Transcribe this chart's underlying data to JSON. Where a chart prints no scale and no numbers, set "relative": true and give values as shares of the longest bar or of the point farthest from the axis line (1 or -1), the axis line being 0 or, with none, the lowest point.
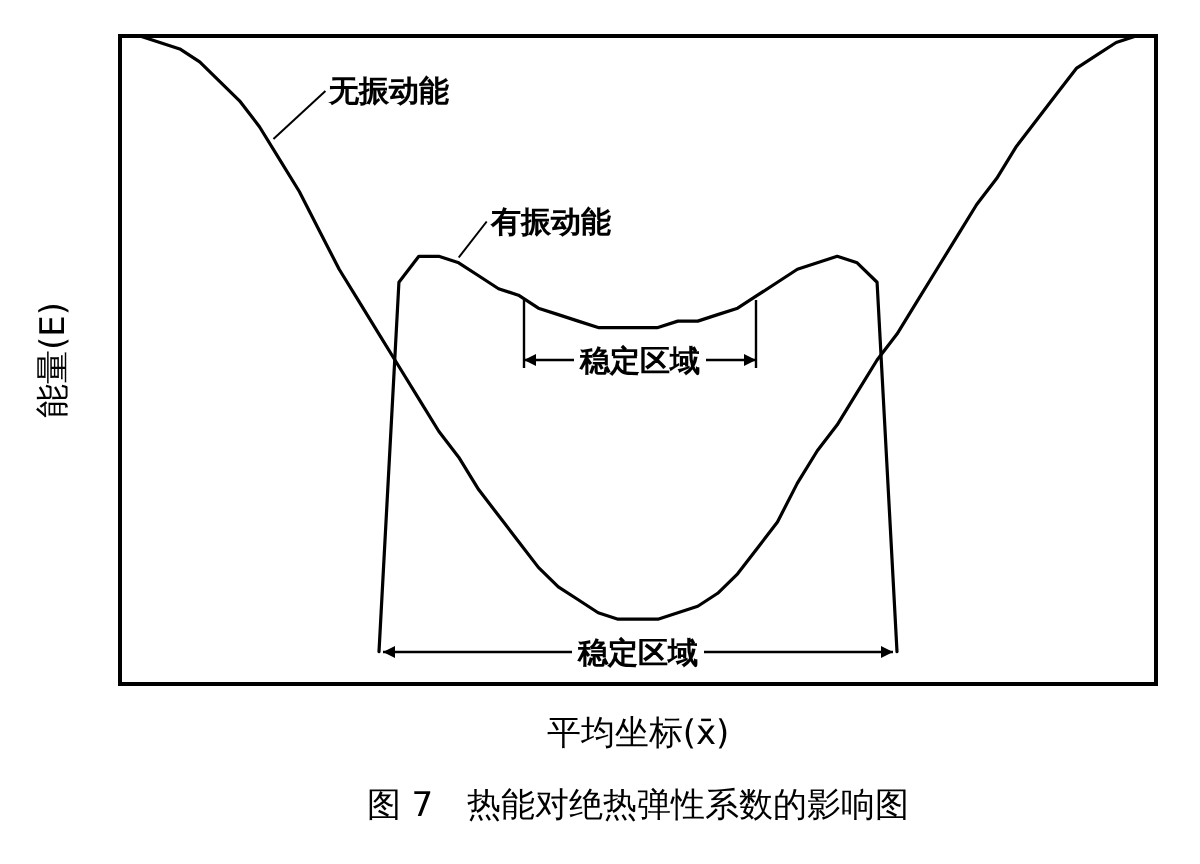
{
  "chart_data": {
    "type": "line",
    "relative": true,
    "title": "图 7　热能对绝热弹性系数的影响图",
    "xlabel": "平均坐标(x̄)",
    "ylabel": "能量(E)",
    "categories": [
      null,
      null,
      null,
      null,
      null,
      null,
      null,
      null,
      null,
      null,
      null,
      null,
      null,
      null,
      null,
      null,
      null,
      null,
      null,
      null,
      null,
      null,
      null,
      null,
      null,
      null,
      null,
      null,
      null,
      null,
      null,
      null,
      null,
      null,
      null,
      null,
      null,
      null,
      null,
      null,
      null,
      null,
      null,
      null,
      null,
      null,
      null,
      null,
      null,
      null,
      null,
      null,
      null
    ],
    "series": [
      {
        "name": "无振动能",
        "color": "#000000",
        "values": [
          1.0,
          1.0,
          0.99,
          0.98,
          0.96,
          0.93,
          0.9,
          0.86,
          0.81,
          0.76,
          0.7,
          0.64,
          0.59,
          0.54,
          0.49,
          0.44,
          0.39,
          0.35,
          0.3,
          0.26,
          0.22,
          0.18,
          0.15,
          0.13,
          0.11,
          0.1,
          0.1,
          0.1,
          0.11,
          0.12,
          0.14,
          0.17,
          0.21,
          0.25,
          0.31,
          0.36,
          0.4,
          0.45,
          0.5,
          0.54,
          0.59,
          0.64,
          0.69,
          0.74,
          0.78,
          0.83,
          0.87,
          0.91,
          0.95,
          0.97,
          0.99,
          1.0,
          1.0
        ]
      },
      {
        "name": "有振动能",
        "color": "#000000",
        "values": [
          null,
          null,
          null,
          null,
          null,
          null,
          null,
          null,
          null,
          null,
          null,
          null,
          null,
          0.05,
          0.62,
          0.66,
          0.66,
          0.65,
          0.63,
          0.61,
          0.6,
          0.58,
          0.57,
          0.56,
          0.55,
          0.55,
          0.55,
          0.55,
          0.56,
          0.56,
          0.57,
          0.58,
          0.6,
          0.62,
          0.64,
          0.65,
          0.66,
          0.65,
          0.62,
          0.05,
          null,
          null,
          null,
          null,
          null,
          null,
          null,
          null,
          null,
          null,
          null,
          null,
          null
        ]
      }
    ],
    "annotations": [
      "稳定区域",
      "稳定区域"
    ],
    "line_style": "solid"
  }
}
